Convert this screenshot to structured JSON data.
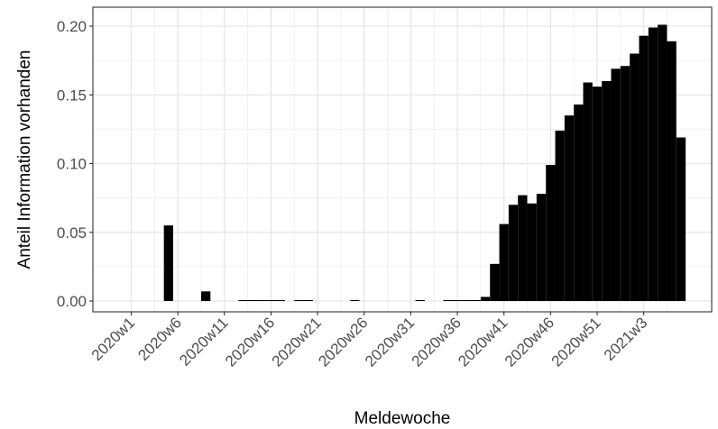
{
  "chart_data": {
    "type": "bar",
    "xlabel": "Meldewoche",
    "ylabel": "Anteil Information vorhanden",
    "ylim": [
      -0.009,
      0.21
    ],
    "yticks": [
      0.0,
      0.05,
      0.1,
      0.15,
      0.2
    ],
    "ytick_labels": [
      "0.00",
      "0.05",
      "0.10",
      "0.15",
      "0.20"
    ],
    "xtick_labels": [
      "2020w1",
      "2020w6",
      "2020w11",
      "2020w16",
      "2020w21",
      "2020w26",
      "2020w31",
      "2020w36",
      "2020w41",
      "2020w46",
      "2020w51",
      "2021w3"
    ],
    "grid": true,
    "theme": "bw",
    "bar_color": "#000000",
    "categories": [
      "2020w1",
      "2020w2",
      "2020w3",
      "2020w4",
      "2020w5",
      "2020w6",
      "2020w7",
      "2020w8",
      "2020w9",
      "2020w10",
      "2020w11",
      "2020w12",
      "2020w13",
      "2020w14",
      "2020w15",
      "2020w16",
      "2020w17",
      "2020w18",
      "2020w19",
      "2020w20",
      "2020w21",
      "2020w22",
      "2020w23",
      "2020w24",
      "2020w25",
      "2020w26",
      "2020w27",
      "2020w28",
      "2020w29",
      "2020w30",
      "2020w31",
      "2020w32",
      "2020w33",
      "2020w34",
      "2020w35",
      "2020w36",
      "2020w37",
      "2020w38",
      "2020w39",
      "2020w40",
      "2020w41",
      "2020w42",
      "2020w43",
      "2020w44",
      "2020w45",
      "2020w46",
      "2020w47",
      "2020w48",
      "2020w49",
      "2020w50",
      "2020w51",
      "2020w52",
      "2020w53",
      "2021w1",
      "2021w2",
      "2021w3",
      "2021w4",
      "2021w5",
      "2021w6",
      "2021w7"
    ],
    "values": [
      0,
      0,
      0,
      0,
      0.055,
      0,
      0,
      0,
      0.007,
      0,
      0,
      0,
      0.0003,
      0.0003,
      0.0003,
      0.0003,
      0.0003,
      0,
      0.0003,
      0.0003,
      0,
      0,
      0,
      0,
      0.0003,
      0,
      0,
      0,
      0,
      0,
      0,
      0.0003,
      0,
      0,
      0.0003,
      0.0003,
      0.0003,
      0.0003,
      0.003,
      0.027,
      0.056,
      0.07,
      0.077,
      0.071,
      0.078,
      0.099,
      0.124,
      0.135,
      0.143,
      0.159,
      0.156,
      0.16,
      0.169,
      0.171,
      0.18,
      0.193,
      0.199,
      0.201,
      0.189,
      0.119
    ]
  }
}
